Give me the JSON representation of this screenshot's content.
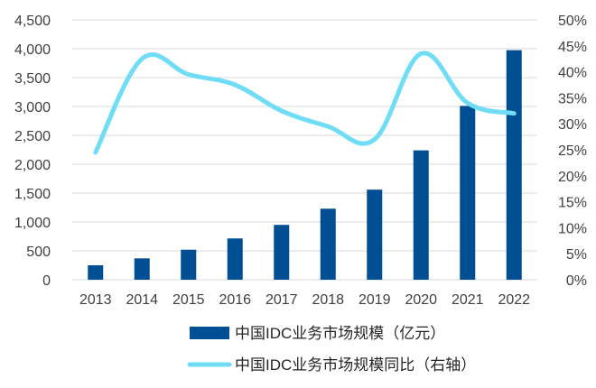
{
  "chart_data": {
    "type": "bar",
    "categories": [
      "2013",
      "2014",
      "2015",
      "2016",
      "2017",
      "2018",
      "2019",
      "2020",
      "2021",
      "2022"
    ],
    "series": [
      {
        "name": "中国IDC业务市场规模（亿元）",
        "type": "bar",
        "axis": "left",
        "color": "#004F94",
        "values": [
          250,
          370,
          520,
          715,
          950,
          1230,
          1560,
          2240,
          3010,
          3975
        ]
      },
      {
        "name": "中国IDC业务市场规模同比（右轴）",
        "type": "line",
        "axis": "right",
        "color": "#6FDDF5",
        "values": [
          24.5,
          42.5,
          39.5,
          37.5,
          32.5,
          29.5,
          27.0,
          43.5,
          34.0,
          32.0
        ]
      }
    ],
    "y_left": {
      "range": [
        0,
        4500
      ],
      "ticks": [
        "0",
        "500",
        "1,000",
        "1,500",
        "2,000",
        "2,500",
        "3,000",
        "3,500",
        "4,000",
        "4,500"
      ]
    },
    "y_right": {
      "range": [
        0,
        50
      ],
      "ticks": [
        "0%",
        "5%",
        "10%",
        "15%",
        "20%",
        "25%",
        "30%",
        "35%",
        "40%",
        "45%",
        "50%"
      ]
    },
    "grid": true,
    "legend_position": "bottom"
  }
}
